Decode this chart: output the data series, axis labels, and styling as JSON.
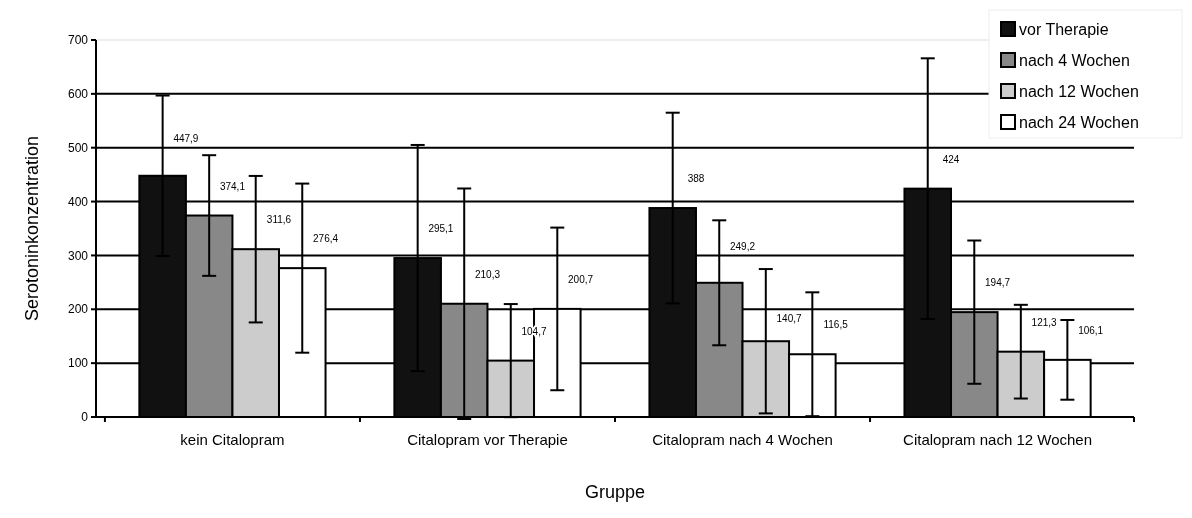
{
  "chart_data": {
    "type": "bar",
    "xlabel": "Gruppe",
    "ylabel": "Serotoninkonzentration",
    "categories": [
      "kein Citalopram",
      "Citalopram vor Therapie",
      "Citalopram nach 4 Wochen",
      "Citalopram nach 12 Wochen"
    ],
    "series": [
      {
        "name": "vor Therapie",
        "color": "#111111",
        "values": [
          447.9,
          295.1,
          388,
          424
        ],
        "errors": [
          149,
          210,
          177,
          242
        ],
        "value_labels": [
          "447,9",
          "295,1",
          "388",
          "424"
        ]
      },
      {
        "name": "nach 4 Wochen",
        "color": "#888888",
        "values": [
          374.1,
          210.3,
          249.2,
          194.7
        ],
        "errors": [
          112,
          214,
          116,
          133
        ],
        "value_labels": [
          "374,1",
          "210,3",
          "249,2",
          "194,7"
        ]
      },
      {
        "name": "nach 12 Wochen",
        "color": "#cccccc",
        "values": [
          311.6,
          104.7,
          140.7,
          121.3
        ],
        "errors": [
          136,
          105,
          134,
          87
        ],
        "value_labels": [
          "311,6",
          "104,7",
          "140,7",
          "121,3"
        ]
      },
      {
        "name": "nach 24 Wochen",
        "color": "#ffffff",
        "values": [
          276.4,
          200.7,
          116.5,
          106.1
        ],
        "errors": [
          157,
          151,
          115,
          74
        ],
        "value_labels": [
          "276,4",
          "200,7",
          "116,5",
          "106,1"
        ]
      }
    ],
    "ylim": [
      0,
      700
    ],
    "yticks": [
      0,
      100,
      200,
      300,
      400,
      500,
      600,
      700
    ],
    "grid": "y",
    "legend": "top right"
  }
}
